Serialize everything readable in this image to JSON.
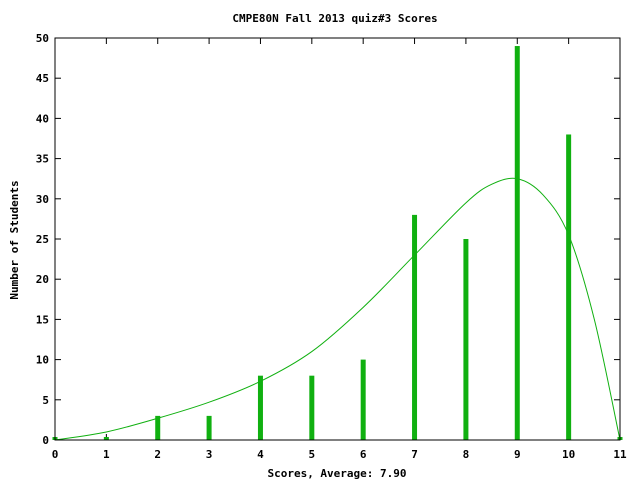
{
  "chart_data": {
    "type": "bar",
    "title": "CMPE80N Fall 2013 quiz#3 Scores",
    "xlabel": "Scores, Average: 7.90",
    "ylabel": "Number of Students",
    "x": [
      0,
      1,
      2,
      3,
      4,
      5,
      6,
      7,
      8,
      9,
      10,
      11
    ],
    "values": [
      0,
      0,
      3,
      3,
      8,
      8,
      10,
      28,
      25,
      49,
      38,
      0
    ],
    "xlim": [
      0,
      11
    ],
    "ylim": [
      0,
      50
    ],
    "xticks": [
      0,
      1,
      2,
      3,
      4,
      5,
      6,
      7,
      8,
      9,
      10,
      11
    ],
    "yticks": [
      0,
      5,
      10,
      15,
      20,
      25,
      30,
      35,
      40,
      45,
      50
    ],
    "grid": false,
    "legend": "none",
    "fit_curve": {
      "x": [
        0,
        1,
        2,
        3,
        4,
        5,
        6,
        7,
        8,
        8.5,
        9,
        9.5,
        10,
        10.5,
        11
      ],
      "y": [
        0,
        1,
        2.7,
        4.7,
        7.3,
        11,
        16.5,
        23,
        29.5,
        31.8,
        32.5,
        30.5,
        25.5,
        15,
        0
      ]
    },
    "colors": {
      "bar": "#10b010",
      "curve": "#10b010"
    }
  }
}
